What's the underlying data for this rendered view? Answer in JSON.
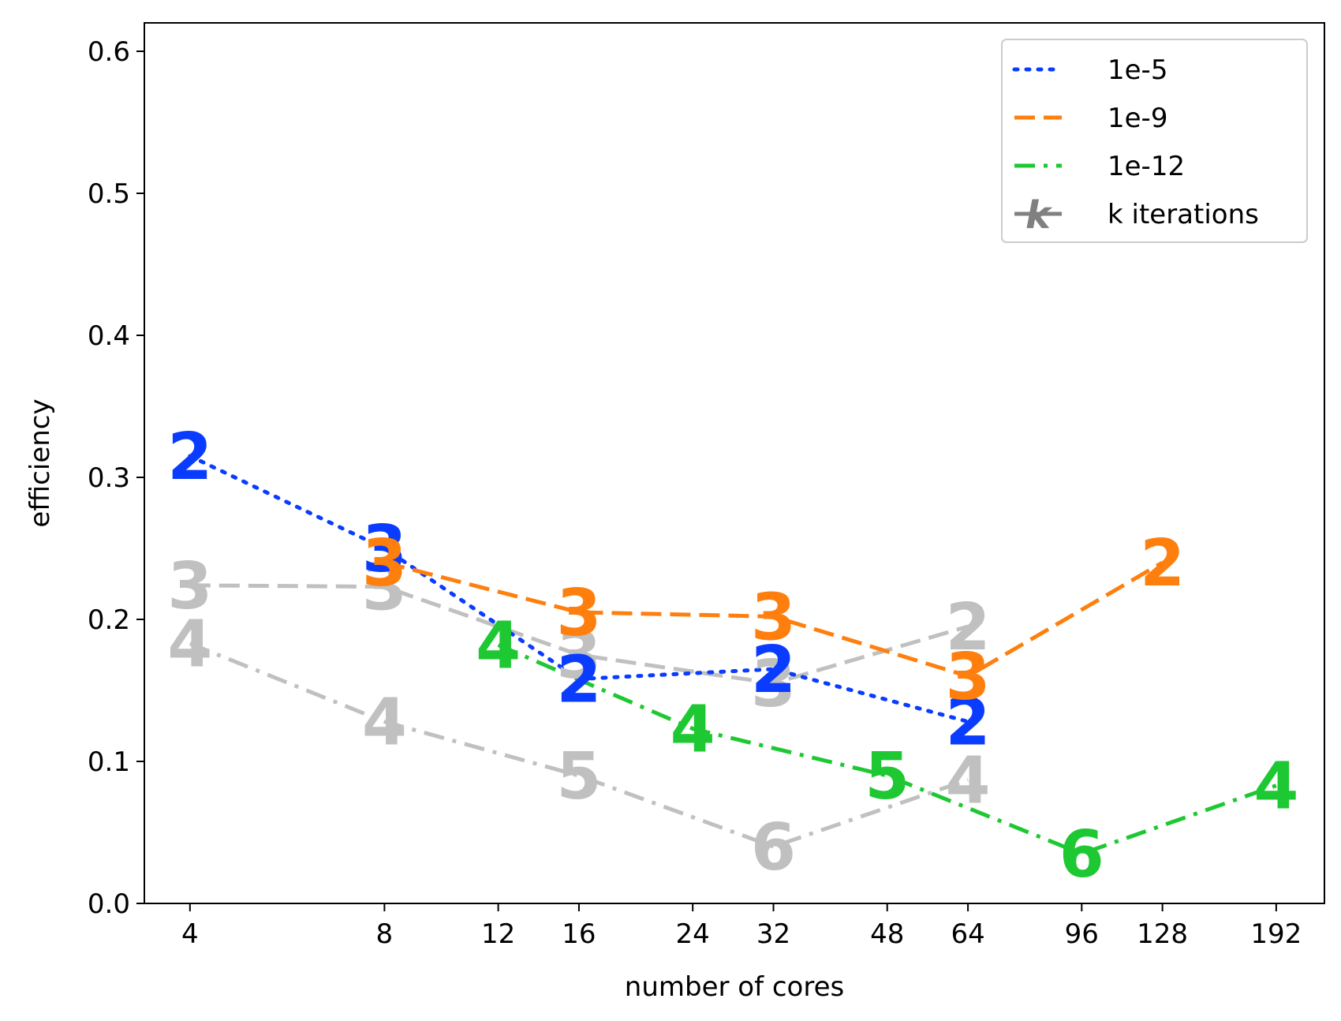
{
  "chart_data": {
    "type": "line",
    "xlabel": "number of cores",
    "ylabel": "efficiency",
    "xscale": "log",
    "xlim": [
      3.4,
      228
    ],
    "ylim": [
      0,
      0.62
    ],
    "xticks": [
      4,
      8,
      12,
      16,
      24,
      32,
      48,
      64,
      96,
      128,
      192
    ],
    "yticks": [
      0.0,
      0.1,
      0.2,
      0.3,
      0.4,
      0.5,
      0.6
    ],
    "xtick_labels": [
      "4",
      "8",
      "12",
      "16",
      "24",
      "32",
      "48",
      "64",
      "96",
      "128",
      "192"
    ],
    "ytick_labels": [
      "0.0",
      "0.1",
      "0.2",
      "0.3",
      "0.4",
      "0.5",
      "0.6"
    ],
    "grid": false,
    "legend_position": "top-right",
    "legend": [
      {
        "name": "1e-5",
        "color": "#0a3cff",
        "style": "dotted"
      },
      {
        "name": "1e-9",
        "color": "#ff7f0e",
        "style": "dashed"
      },
      {
        "name": "1e-12",
        "color": "#1ec832",
        "style": "dashdot"
      },
      {
        "name": "k iterations",
        "color": "#808080",
        "style": "solid",
        "marker": "k"
      }
    ],
    "series": [
      {
        "name": "1e-5",
        "color": "#0a3cff",
        "style": "dotted",
        "x": [
          4,
          8,
          16,
          32,
          64
        ],
        "y": [
          0.315,
          0.25,
          0.158,
          0.165,
          0.128
        ],
        "labels": [
          "2",
          "3",
          "2",
          "2",
          "2"
        ]
      },
      {
        "name": "1e-9",
        "color": "#ff7f0e",
        "style": "dashed",
        "x": [
          8,
          16,
          32,
          64,
          128
        ],
        "y": [
          0.24,
          0.205,
          0.202,
          0.16,
          0.24
        ],
        "labels": [
          "3",
          "3",
          "3",
          "3",
          "2"
        ]
      },
      {
        "name": "1e-12",
        "color": "#1ec832",
        "style": "dashdot",
        "x": [
          12,
          24,
          48,
          96,
          192
        ],
        "y": [
          0.182,
          0.123,
          0.09,
          0.035,
          0.083
        ],
        "labels": [
          "4",
          "4",
          "5",
          "6",
          "4"
        ]
      },
      {
        "color": "#c0c0c0",
        "style": "dashed",
        "x": [
          4,
          8,
          16,
          32,
          64
        ],
        "y": [
          0.224,
          0.223,
          0.175,
          0.155,
          0.195
        ],
        "labels": [
          "3",
          "3",
          "3",
          "3",
          "2"
        ]
      },
      {
        "color": "#c0c0c0",
        "style": "dashdot",
        "x": [
          4,
          8,
          16,
          32,
          64
        ],
        "y": [
          0.183,
          0.128,
          0.09,
          0.04,
          0.087
        ],
        "labels": [
          "4",
          "4",
          "5",
          "6",
          "4"
        ]
      }
    ]
  }
}
